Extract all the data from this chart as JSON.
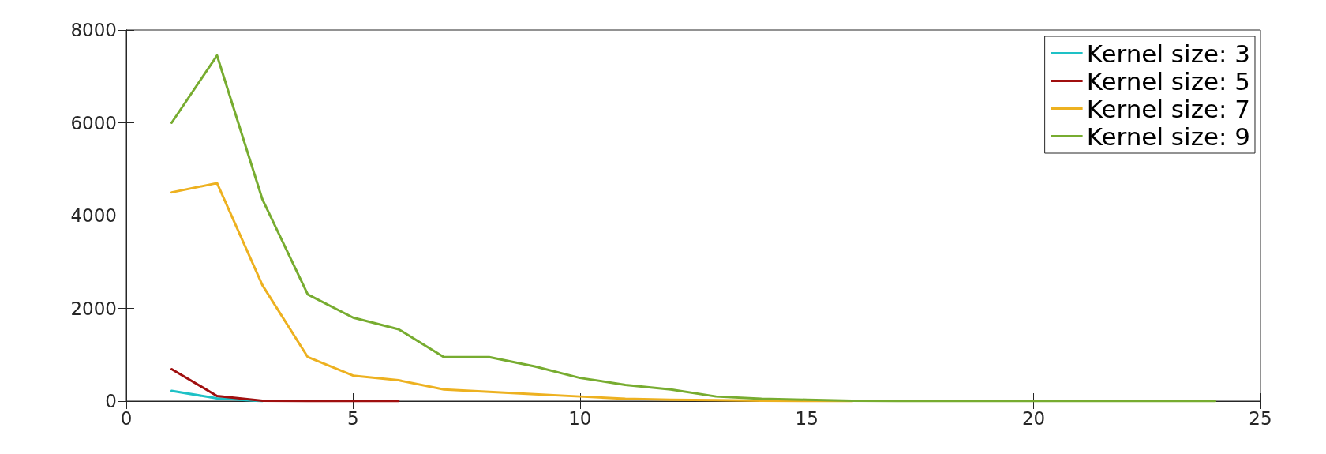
{
  "chart_data": {
    "type": "line",
    "xlim": [
      0,
      25
    ],
    "xticks": [
      0,
      5,
      10,
      15,
      20,
      25
    ],
    "ylim": [
      0,
      8000
    ],
    "yticks": [
      0,
      2000,
      4000,
      6000,
      8000
    ],
    "grid": false,
    "legend": "top right",
    "marker": "none",
    "line_style": "solid",
    "series": [
      {
        "name": "Kernel size: 3",
        "color": "#1ec1c6",
        "x": [
          1,
          2,
          3
        ],
        "values": [
          220,
          60,
          0
        ]
      },
      {
        "name": "Kernel size: 5",
        "color": "#a00f0f",
        "x": [
          1,
          2,
          3,
          4,
          5,
          6
        ],
        "values": [
          690,
          110,
          10,
          0,
          0,
          0
        ]
      },
      {
        "name": "Kernel size: 7",
        "color": "#edb120",
        "x": [
          1,
          2,
          3,
          4,
          5,
          6,
          7,
          8,
          9,
          10,
          11,
          12,
          13,
          14,
          15,
          16
        ],
        "values": [
          4500,
          4700,
          2500,
          950,
          550,
          450,
          250,
          200,
          150,
          100,
          50,
          30,
          20,
          10,
          0,
          0
        ]
      },
      {
        "name": "Kernel size: 9",
        "color": "#77ac30",
        "x": [
          1,
          2,
          3,
          4,
          5,
          6,
          7,
          8,
          9,
          10,
          11,
          12,
          13,
          14,
          15,
          16,
          17,
          18,
          19,
          20,
          21,
          22,
          23,
          24
        ],
        "values": [
          6000,
          7450,
          4350,
          2300,
          1800,
          1550,
          950,
          950,
          750,
          500,
          350,
          250,
          100,
          50,
          30,
          10,
          0,
          0,
          0,
          0,
          0,
          0,
          0,
          0
        ]
      }
    ]
  }
}
